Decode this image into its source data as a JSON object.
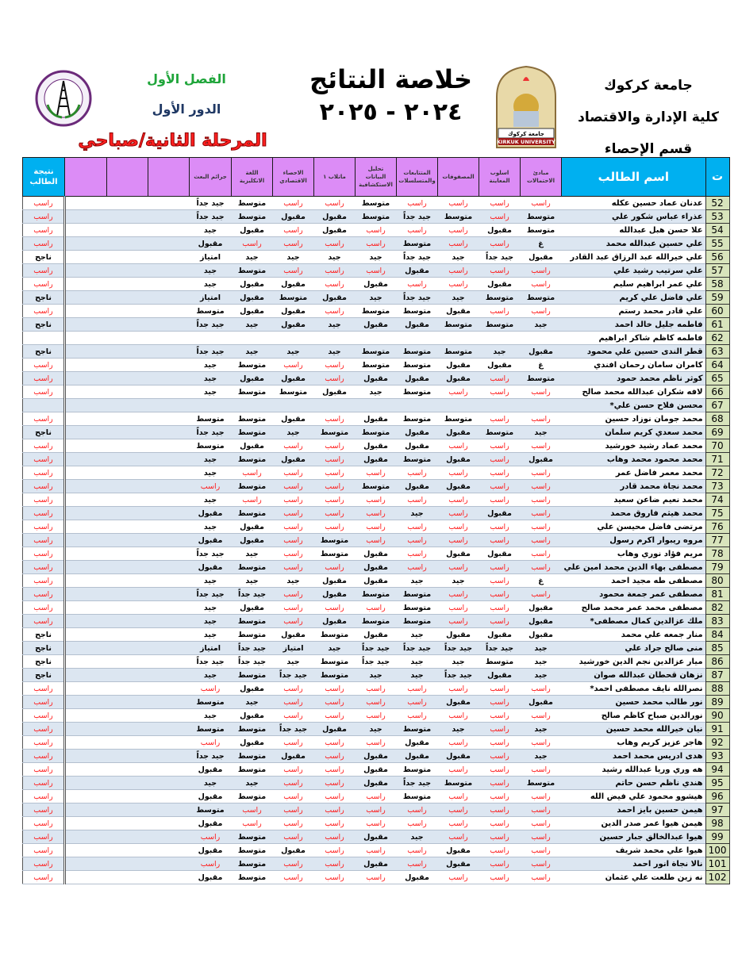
{
  "header": {
    "university": "جامعة كركوك",
    "college": "كلية الإدارة والاقتصاد",
    "department": "قسم الإحصاء",
    "title": "خلاصة النتائج",
    "year": "٢٠٢٤ - ٢٠٢٥",
    "semester": "الفصل الأول",
    "round": "الدور الأول",
    "stage": "المرحلة الثانية/صباحي",
    "logo_right_text": [
      "جامعة كركوك",
      "KIRKUK UNIVERSITY"
    ]
  },
  "colors": {
    "header_cyan": "#00b0f0",
    "header_violet": "#dc8cf6",
    "fail": "#ff1a1a",
    "row_alt": "#dce6f1",
    "num_cell": "#d8e4bc"
  },
  "columns": {
    "num": "ت",
    "name": "اسم الطالب",
    "subjects": [
      "مبادئ الاحتمالات",
      "اسلوب المعاينة",
      "المصفوفات",
      "المتتابعات والمتسلسلات",
      "تحليل البيانات الاستكشافية",
      "ماتلاب ١",
      "الاحصاء الاقتصادي",
      "اللغة الانكليزية",
      "جرائم البعث",
      "",
      "",
      ""
    ],
    "result": "نتيجة الطالب"
  },
  "fail_label": "راسب",
  "rows": [
    {
      "n": "52",
      "name": "عدنان عماد حسين عكله",
      "g": [
        "راسب",
        "راسب",
        "راسب",
        "راسب",
        "متوسط",
        "راسب",
        "راسب",
        "متوسط",
        "جيد جداً"
      ],
      "r": "راسب"
    },
    {
      "n": "53",
      "name": "عذراء عباس شكور علي",
      "g": [
        "متوسط",
        "راسب",
        "متوسط",
        "جيد جداً",
        "متوسط",
        "مقبول",
        "مقبول",
        "متوسط",
        "جيد جداً"
      ],
      "r": "راسب"
    },
    {
      "n": "54",
      "name": "علا حسن هبل عبدالله",
      "g": [
        "متوسط",
        "مقبول",
        "راسب",
        "راسب",
        "راسب",
        "مقبول",
        "راسب",
        "مقبول",
        "جيد"
      ],
      "r": "راسب"
    },
    {
      "n": "55",
      "name": "علي حسين عبدالله محمد",
      "g": [
        "غ",
        "راسب",
        "راسب",
        "متوسط",
        "راسب",
        "راسب",
        "راسب",
        "راسب",
        "مقبول"
      ],
      "r": "راسب"
    },
    {
      "n": "56",
      "name": "علي خيرالله عبد الرزاق عبد القادر",
      "g": [
        "مقبول",
        "جيد جداً",
        "جيد",
        "جيد جداً",
        "جيد",
        "جيد",
        "جيد",
        "جيد",
        "امتياز"
      ],
      "r": "ناجح"
    },
    {
      "n": "57",
      "name": "علي سرتيب رشيد علي",
      "g": [
        "راسب",
        "راسب",
        "راسب",
        "مقبول",
        "راسب",
        "راسب",
        "راسب",
        "متوسط",
        "جيد"
      ],
      "r": "راسب"
    },
    {
      "n": "58",
      "name": "علي عمر ابراهيم سليم",
      "g": [
        "راسب",
        "مقبول",
        "راسب",
        "راسب",
        "مقبول",
        "راسب",
        "مقبول",
        "مقبول",
        "جيد"
      ],
      "r": "راسب"
    },
    {
      "n": "59",
      "name": "علي فاضل علي كريم",
      "g": [
        "متوسط",
        "متوسط",
        "جيد",
        "جيد جداً",
        "جيد",
        "مقبول",
        "متوسط",
        "مقبول",
        "امتياز"
      ],
      "r": "ناجح"
    },
    {
      "n": "60",
      "name": "علي قادر محمد رستم",
      "g": [
        "راسب",
        "راسب",
        "مقبول",
        "متوسط",
        "متوسط",
        "راسب",
        "مقبول",
        "مقبول",
        "متوسط"
      ],
      "r": "راسب"
    },
    {
      "n": "61",
      "name": "فاطمه جليل خالد احمد",
      "g": [
        "جيد",
        "متوسط",
        "متوسط",
        "مقبول",
        "مقبول",
        "جيد",
        "مقبول",
        "جيد",
        "جيد جداً"
      ],
      "r": "ناجح"
    },
    {
      "n": "62",
      "name": "فاطمه كاظم شاكر ابراهيم",
      "g": [
        "",
        "",
        "",
        "",
        "",
        "",
        "",
        "",
        ""
      ],
      "r": ""
    },
    {
      "n": "63",
      "name": "قطر الندى حسين علي محمود",
      "g": [
        "مقبول",
        "جيد",
        "متوسط",
        "متوسط",
        "متوسط",
        "جيد",
        "جيد",
        "جيد",
        "جيد جداً"
      ],
      "r": "ناجح"
    },
    {
      "n": "64",
      "name": "كامران سامان رحمان افندي",
      "g": [
        "غ",
        "مقبول",
        "مقبول",
        "متوسط",
        "متوسط",
        "راسب",
        "راسب",
        "متوسط",
        "جيد"
      ],
      "r": "راسب"
    },
    {
      "n": "65",
      "name": "كوثر ناظم محمد حمود",
      "g": [
        "متوسط",
        "راسب",
        "مقبول",
        "مقبول",
        "مقبول",
        "راسب",
        "مقبول",
        "مقبول",
        "جيد"
      ],
      "r": "راسب"
    },
    {
      "n": "66",
      "name": "لافه شكران عبدالله محمد صالح",
      "g": [
        "راسب",
        "راسب",
        "راسب",
        "متوسط",
        "جيد",
        "مقبول",
        "متوسط",
        "متوسط",
        "جيد"
      ],
      "r": "راسب"
    },
    {
      "n": "67",
      "name": "محسن فلاح حسن علي*",
      "g": [
        "",
        "",
        "",
        "",
        "",
        "",
        "",
        "",
        ""
      ],
      "r": ""
    },
    {
      "n": "68",
      "name": "محمد جومان نوزاد حسين",
      "g": [
        "راسب",
        "راسب",
        "متوسط",
        "متوسط",
        "مقبول",
        "راسب",
        "مقبول",
        "متوسط",
        "متوسط"
      ],
      "r": "راسب"
    },
    {
      "n": "69",
      "name": "محمد سعدي كريم سلمان",
      "g": [
        "جيد",
        "متوسط",
        "مقبول",
        "مقبول",
        "متوسط",
        "متوسط",
        "جيد",
        "متوسط",
        "جيد جداً"
      ],
      "r": "ناجح"
    },
    {
      "n": "70",
      "name": "محمد عماد رشيد خورشيد",
      "g": [
        "راسب",
        "راسب",
        "راسب",
        "مقبول",
        "مقبول",
        "راسب",
        "راسب",
        "مقبول",
        "متوسط"
      ],
      "r": "راسب"
    },
    {
      "n": "71",
      "name": "محمد محمود محمد وهاب",
      "g": [
        "مقبول",
        "راسب",
        "مقبول",
        "متوسط",
        "مقبول",
        "راسب",
        "مقبول",
        "متوسط",
        "جيد"
      ],
      "r": "راسب"
    },
    {
      "n": "72",
      "name": "محمد معمر فاضل عمر",
      "g": [
        "راسب",
        "راسب",
        "راسب",
        "راسب",
        "راسب",
        "راسب",
        "راسب",
        "راسب",
        "جيد"
      ],
      "r": "راسب"
    },
    {
      "n": "73",
      "name": "محمد نجاة محمد قادر",
      "g": [
        "راسب",
        "راسب",
        "مقبول",
        "مقبول",
        "متوسط",
        "راسب",
        "راسب",
        "متوسط",
        "راسب"
      ],
      "r": "راسب"
    },
    {
      "n": "74",
      "name": "محمد نعيم ضاعن سعيد",
      "g": [
        "راسب",
        "راسب",
        "راسب",
        "راسب",
        "راسب",
        "راسب",
        "راسب",
        "راسب",
        "جيد"
      ],
      "r": "راسب"
    },
    {
      "n": "75",
      "name": "محمد هيثم فاروق محمد",
      "g": [
        "راسب",
        "مقبول",
        "راسب",
        "جيد",
        "راسب",
        "راسب",
        "راسب",
        "متوسط",
        "مقبول"
      ],
      "r": "راسب"
    },
    {
      "n": "76",
      "name": "مرتضى فاضل محيسن علي",
      "g": [
        "راسب",
        "راسب",
        "راسب",
        "راسب",
        "راسب",
        "راسب",
        "راسب",
        "مقبول",
        "جيد"
      ],
      "r": "راسب"
    },
    {
      "n": "77",
      "name": "مروه ريبوار اكرم رسول",
      "g": [
        "راسب",
        "راسب",
        "راسب",
        "راسب",
        "راسب",
        "متوسط",
        "راسب",
        "مقبول",
        "مقبول"
      ],
      "r": "راسب"
    },
    {
      "n": "78",
      "name": "مريم فؤاد نوري وهاب",
      "g": [
        "راسب",
        "مقبول",
        "مقبول",
        "راسب",
        "مقبول",
        "متوسط",
        "راسب",
        "جيد",
        "جيد جداً"
      ],
      "r": "راسب"
    },
    {
      "n": "79",
      "name": "مصطفى بهاء الدين محمد امين علي",
      "g": [
        "راسب",
        "راسب",
        "راسب",
        "راسب",
        "مقبول",
        "راسب",
        "راسب",
        "متوسط",
        "مقبول"
      ],
      "r": "راسب"
    },
    {
      "n": "80",
      "name": "مصطفى طه مجيد احمد",
      "g": [
        "غ",
        "راسب",
        "جيد",
        "جيد",
        "مقبول",
        "مقبول",
        "جيد",
        "جيد",
        "جيد"
      ],
      "r": "راسب"
    },
    {
      "n": "81",
      "name": "مصطفى عمر جمعة محمود",
      "g": [
        "راسب",
        "راسب",
        "راسب",
        "متوسط",
        "متوسط",
        "مقبول",
        "راسب",
        "جيد جداً",
        "جيد جداً"
      ],
      "r": "راسب"
    },
    {
      "n": "82",
      "name": "مصطفى محمد عمر محمد صالح",
      "g": [
        "مقبول",
        "راسب",
        "راسب",
        "متوسط",
        "راسب",
        "راسب",
        "راسب",
        "مقبول",
        "جيد"
      ],
      "r": "راسب"
    },
    {
      "n": "83",
      "name": "ملك عزالدين كمال مصطفى*",
      "g": [
        "مقبول",
        "راسب",
        "راسب",
        "متوسط",
        "متوسط",
        "مقبول",
        "راسب",
        "متوسط",
        "جيد"
      ],
      "r": "راسب"
    },
    {
      "n": "84",
      "name": "منار جمعه علي محمد",
      "g": [
        "مقبول",
        "مقبول",
        "مقبول",
        "جيد",
        "مقبول",
        "متوسط",
        "مقبول",
        "متوسط",
        "جيد"
      ],
      "r": "ناجح"
    },
    {
      "n": "85",
      "name": "منى صالح جراد علي",
      "g": [
        "جيد",
        "جيد جداً",
        "جيد جداً",
        "جيد جداً",
        "جيد جداً",
        "جيد",
        "امتياز",
        "جيد جداً",
        "امتياز"
      ],
      "r": "ناجح"
    },
    {
      "n": "86",
      "name": "ميار عزالدين نجم الدين خورشيد",
      "g": [
        "جيد",
        "متوسط",
        "جيد",
        "جيد",
        "جيد جداً",
        "متوسط",
        "جيد",
        "جيد جداً",
        "جيد جداً"
      ],
      "r": "ناجح"
    },
    {
      "n": "87",
      "name": "نزهان قحطان عبدالله صوان",
      "g": [
        "جيد",
        "مقبول",
        "جيد جداً",
        "جيد",
        "جيد",
        "متوسط",
        "جيد جداً",
        "متوسط",
        "جيد"
      ],
      "r": "ناجح"
    },
    {
      "n": "88",
      "name": "نصرالله نايف مصطفى احمد*",
      "g": [
        "راسب",
        "راسب",
        "راسب",
        "راسب",
        "راسب",
        "راسب",
        "راسب",
        "مقبول",
        "راسب"
      ],
      "r": "راسب"
    },
    {
      "n": "89",
      "name": "نور طالب محمد حسين",
      "g": [
        "مقبول",
        "راسب",
        "مقبول",
        "راسب",
        "راسب",
        "راسب",
        "راسب",
        "جيد",
        "متوسط"
      ],
      "r": "راسب"
    },
    {
      "n": "90",
      "name": "نورالدين صباح كاظم صالح",
      "g": [
        "راسب",
        "راسب",
        "راسب",
        "راسب",
        "راسب",
        "راسب",
        "راسب",
        "مقبول",
        "جيد"
      ],
      "r": "راسب"
    },
    {
      "n": "91",
      "name": "نيان خيرالله محمد حسين",
      "g": [
        "جيد",
        "راسب",
        "جيد",
        "متوسط",
        "جيد",
        "مقبول",
        "جيد جداً",
        "متوسط",
        "متوسط"
      ],
      "r": "راسب"
    },
    {
      "n": "92",
      "name": "هاجر عزيز كريم وهاب",
      "g": [
        "راسب",
        "راسب",
        "راسب",
        "مقبول",
        "راسب",
        "راسب",
        "راسب",
        "مقبول",
        "راسب"
      ],
      "r": "راسب"
    },
    {
      "n": "93",
      "name": "هدى ادريس محمد احمد",
      "g": [
        "جيد",
        "راسب",
        "مقبول",
        "مقبول",
        "مقبول",
        "راسب",
        "مقبول",
        "متوسط",
        "جيد جداً"
      ],
      "r": "راسب"
    },
    {
      "n": "94",
      "name": "هه وري وريا عبدالله رشيد",
      "g": [
        "راسب",
        "راسب",
        "راسب",
        "متوسط",
        "مقبول",
        "راسب",
        "راسب",
        "متوسط",
        "مقبول"
      ],
      "r": "راسب"
    },
    {
      "n": "95",
      "name": "هندي ناظم حسن حاتم",
      "g": [
        "متوسط",
        "راسب",
        "متوسط",
        "جيد جداً",
        "مقبول",
        "راسب",
        "راسب",
        "جيد",
        "جيد"
      ],
      "r": "راسب"
    },
    {
      "n": "96",
      "name": "هيشوو محمود علي فيض الله",
      "g": [
        "راسب",
        "راسب",
        "راسب",
        "متوسط",
        "راسب",
        "راسب",
        "راسب",
        "متوسط",
        "مقبول"
      ],
      "r": "راسب"
    },
    {
      "n": "97",
      "name": "هيمن حسين بايز احمد",
      "g": [
        "راسب",
        "راسب",
        "راسب",
        "راسب",
        "راسب",
        "راسب",
        "راسب",
        "راسب",
        "متوسط"
      ],
      "r": "راسب"
    },
    {
      "n": "98",
      "name": "هيمن هيوا عمر صدر الدين",
      "g": [
        "راسب",
        "راسب",
        "راسب",
        "راسب",
        "راسب",
        "راسب",
        "راسب",
        "راسب",
        "مقبول"
      ],
      "r": "راسب"
    },
    {
      "n": "99",
      "name": "هيوا عبدالخالق جبار حسين",
      "g": [
        "راسب",
        "راسب",
        "راسب",
        "جيد",
        "مقبول",
        "راسب",
        "راسب",
        "متوسط",
        "راسب"
      ],
      "r": "راسب"
    },
    {
      "n": "100",
      "name": "هيوا علي محمد شريف",
      "g": [
        "راسب",
        "راسب",
        "مقبول",
        "راسب",
        "راسب",
        "راسب",
        "مقبول",
        "متوسط",
        "مقبول"
      ],
      "r": "راسب"
    },
    {
      "n": "101",
      "name": "نالا نجاة انور احمد",
      "g": [
        "راسب",
        "راسب",
        "مقبول",
        "راسب",
        "مقبول",
        "راسب",
        "راسب",
        "متوسط",
        "راسب"
      ],
      "r": "راسب"
    },
    {
      "n": "102",
      "name": "نه زين طلعت علي عثمان",
      "g": [
        "راسب",
        "راسب",
        "راسب",
        "مقبول",
        "راسب",
        "راسب",
        "راسب",
        "متوسط",
        "مقبول"
      ],
      "r": "راسب"
    }
  ]
}
